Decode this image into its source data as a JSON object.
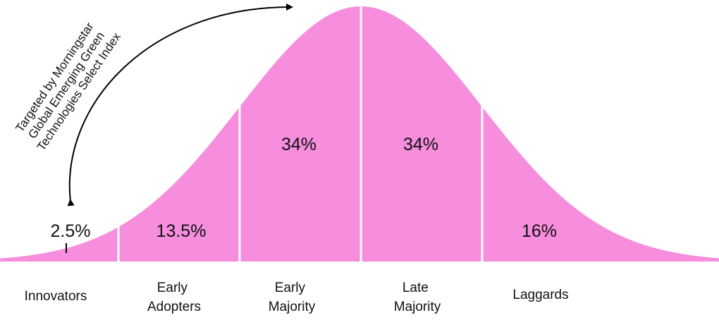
{
  "chart_data": {
    "type": "area",
    "description_shape": "bell curve (normal distribution) divided into segments",
    "fill_color": "#f68ddd",
    "divider_color": "#ffffff",
    "segments": [
      {
        "label_lines": [
          "Innovators"
        ],
        "value": "2.5%"
      },
      {
        "label_lines": [
          "Early",
          "Adopters"
        ],
        "value": "13.5%"
      },
      {
        "label_lines": [
          "Early",
          "Majority"
        ],
        "value": "34%"
      },
      {
        "label_lines": [
          "Late",
          "Majority"
        ],
        "value": "34%"
      },
      {
        "label_lines": [
          "Laggards"
        ],
        "value": "16%"
      }
    ],
    "annotation": {
      "lines": [
        "Targeted by Morningstar",
        "Global Emerging Green",
        "Technologies Select Index"
      ],
      "arrow": "double-headed curved arrow from Innovators to curve peak"
    }
  }
}
